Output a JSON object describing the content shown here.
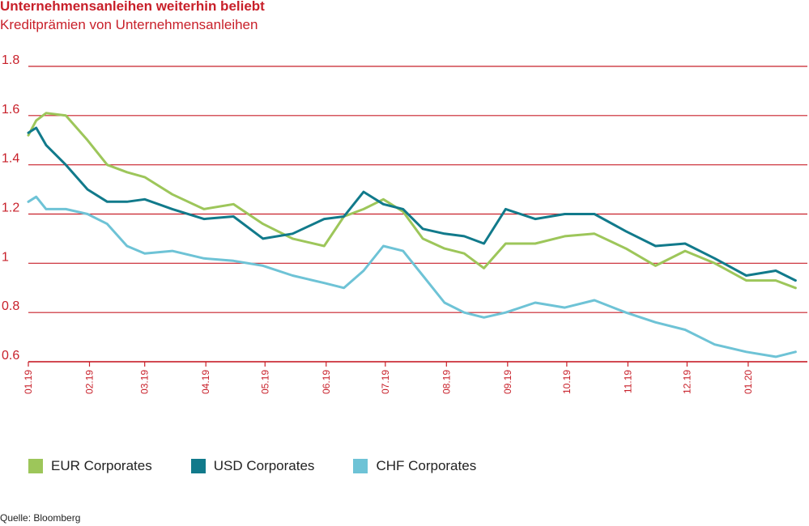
{
  "header": {
    "title": "Unternehmensanleihen weiterhin beliebt",
    "subtitle": "Kreditprämien von Unternehmensanleihen"
  },
  "source": "Quelle: Bloomberg",
  "colors": {
    "accent": "#c8202a",
    "eur": "#9dc65a",
    "usd": "#117a8b",
    "chf": "#6ec3d6"
  },
  "chart_data": {
    "type": "line",
    "title": "Unternehmensanleihen weiterhin beliebt",
    "subtitle": "Kreditprämien von Unternehmensanleihen",
    "xlabel": "",
    "ylabel": "",
    "ylim": [
      0.6,
      1.8
    ],
    "yticks": [
      0.6,
      0.8,
      1,
      1.2,
      1.4,
      1.6,
      1.8
    ],
    "ytick_labels": [
      "0.6",
      "0.8",
      "1",
      "1.2",
      "1.4",
      "1.6",
      "1.8"
    ],
    "grid": "horizontal",
    "legend_position": "bottom",
    "xticks": [
      "01.19",
      "02.19",
      "03.19",
      "04.19",
      "05.19",
      "06.19",
      "07.19",
      "08.19",
      "09.19",
      "10.19",
      "11.19",
      "12.19",
      "01.20"
    ],
    "series": [
      {
        "name": "EUR Corporates",
        "color": "#9dc65a",
        "x": [
          "01.01.19",
          "05.01.19",
          "10.01.19",
          "20.01.19",
          "31.01.19",
          "10.02.19",
          "20.02.19",
          "01.03.19",
          "15.03.19",
          "31.03.19",
          "15.04.19",
          "30.04.19",
          "15.05.19",
          "31.05.19",
          "10.06.19",
          "20.06.19",
          "30.06.19",
          "10.07.19",
          "20.07.19",
          "31.07.19",
          "10.08.19",
          "20.08.19",
          "31.08.19",
          "15.09.19",
          "30.09.19",
          "15.10.19",
          "31.10.19",
          "15.11.19",
          "30.11.19",
          "15.12.19",
          "31.12.19",
          "15.01.20",
          "25.01.20"
        ],
        "values": [
          1.52,
          1.58,
          1.61,
          1.6,
          1.5,
          1.4,
          1.37,
          1.35,
          1.28,
          1.22,
          1.24,
          1.16,
          1.1,
          1.07,
          1.19,
          1.22,
          1.26,
          1.21,
          1.1,
          1.06,
          1.04,
          0.98,
          1.08,
          1.08,
          1.11,
          1.12,
          1.06,
          0.99,
          1.05,
          1.0,
          0.93,
          0.93,
          0.9
        ]
      },
      {
        "name": "USD Corporates",
        "color": "#117a8b",
        "x": [
          "01.01.19",
          "05.01.19",
          "10.01.19",
          "20.01.19",
          "31.01.19",
          "10.02.19",
          "20.02.19",
          "01.03.19",
          "15.03.19",
          "31.03.19",
          "15.04.19",
          "30.04.19",
          "15.05.19",
          "31.05.19",
          "10.06.19",
          "20.06.19",
          "30.06.19",
          "10.07.19",
          "20.07.19",
          "31.07.19",
          "10.08.19",
          "20.08.19",
          "31.08.19",
          "15.09.19",
          "30.09.19",
          "15.10.19",
          "31.10.19",
          "15.11.19",
          "30.11.19",
          "15.12.19",
          "31.12.19",
          "15.01.20",
          "25.01.20"
        ],
        "values": [
          1.53,
          1.55,
          1.48,
          1.4,
          1.3,
          1.25,
          1.25,
          1.26,
          1.22,
          1.18,
          1.19,
          1.1,
          1.12,
          1.18,
          1.19,
          1.29,
          1.24,
          1.22,
          1.14,
          1.12,
          1.11,
          1.08,
          1.22,
          1.18,
          1.2,
          1.2,
          1.13,
          1.07,
          1.08,
          1.02,
          0.95,
          0.97,
          0.93
        ]
      },
      {
        "name": "CHF Corporates",
        "color": "#6ec3d6",
        "x": [
          "01.01.19",
          "05.01.19",
          "10.01.19",
          "20.01.19",
          "31.01.19",
          "10.02.19",
          "20.02.19",
          "01.03.19",
          "15.03.19",
          "31.03.19",
          "15.04.19",
          "30.04.19",
          "15.05.19",
          "31.05.19",
          "10.06.19",
          "20.06.19",
          "30.06.19",
          "10.07.19",
          "20.07.19",
          "31.07.19",
          "10.08.19",
          "20.08.19",
          "31.08.19",
          "15.09.19",
          "30.09.19",
          "15.10.19",
          "31.10.19",
          "15.11.19",
          "30.11.19",
          "15.12.19",
          "31.12.19",
          "15.01.20",
          "25.01.20"
        ],
        "values": [
          1.25,
          1.27,
          1.22,
          1.22,
          1.2,
          1.16,
          1.07,
          1.04,
          1.05,
          1.02,
          1.01,
          0.99,
          0.95,
          0.92,
          0.9,
          0.97,
          1.07,
          1.05,
          0.95,
          0.84,
          0.8,
          0.78,
          0.8,
          0.84,
          0.82,
          0.85,
          0.8,
          0.76,
          0.73,
          0.67,
          0.64,
          0.62,
          0.64
        ]
      }
    ]
  }
}
